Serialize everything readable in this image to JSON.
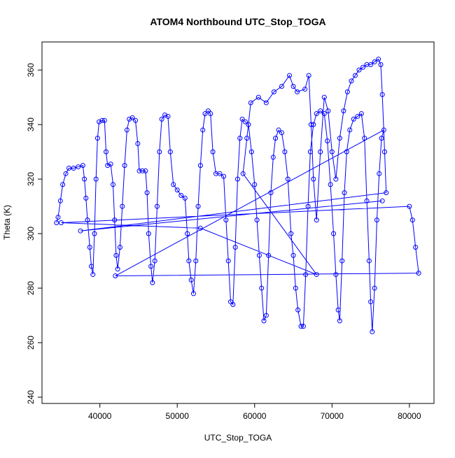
{
  "chart_data": {
    "type": "line",
    "title": "ATOM4 Northbound UTC_Stop_TOGA",
    "x_label": "UTC_Stop_TOGA",
    "y_label": "Theta (K)",
    "x": [
      34400,
      34600,
      34900,
      35200,
      35600,
      36000,
      36600,
      37200,
      37800,
      38000,
      38200,
      38400,
      38700,
      38900,
      39100,
      39300,
      39500,
      39700,
      39900,
      40300,
      40600,
      40800,
      41000,
      41400,
      41700,
      41900,
      42100,
      42300,
      42600,
      42900,
      43200,
      43500,
      43800,
      44200,
      44600,
      44900,
      45100,
      45500,
      45900,
      46100,
      46300,
      46600,
      46800,
      47100,
      47400,
      47700,
      48000,
      48400,
      48800,
      49100,
      49500,
      50000,
      50500,
      51000,
      51300,
      51500,
      51800,
      52100,
      52400,
      52700,
      53000,
      53300,
      53600,
      54000,
      54300,
      54600,
      55000,
      55500,
      56000,
      56300,
      56600,
      56900,
      57200,
      57500,
      57800,
      58100,
      58400,
      58800,
      59200,
      59600,
      60000,
      60300,
      60600,
      60900,
      61200,
      61500,
      61800,
      62100,
      62400,
      62700,
      63100,
      63500,
      63900,
      64300,
      64700,
      65000,
      65300,
      65600,
      66000,
      66300,
      66600,
      66900,
      67200,
      67600,
      68000,
      68500,
      69000,
      69400,
      69800,
      70200,
      70500,
      70800,
      71000,
      71300,
      71600,
      71900,
      72300,
      72800,
      73300,
      73800,
      74200,
      74500,
      74800,
      75000,
      75200,
      75500,
      75800,
      76100,
      76400,
      76700,
      42000,
      81200,
      80800,
      80400,
      80000,
      35000,
      53000,
      68000,
      58500,
      59000,
      59500,
      60500,
      61500,
      62500,
      63500,
      64500,
      65000,
      65500,
      66500,
      67000,
      67300,
      67600,
      68000,
      68500,
      69000,
      69500,
      70000,
      70500,
      71000,
      71500,
      72000,
      72500,
      73000,
      73500,
      74000,
      74500,
      75000,
      75500,
      76000,
      76300,
      76500,
      76800,
      77000,
      37500,
      76500
    ],
    "series": [
      {
        "name": "Theta",
        "color": "#0000ff",
        "values": [
          304,
          306,
          312,
          318,
          322,
          324,
          324,
          324.5,
          325,
          320,
          313,
          305,
          295,
          288,
          285,
          300,
          320,
          335,
          341,
          341.5,
          341.5,
          330,
          325,
          325.5,
          318,
          305,
          292,
          287,
          295,
          310,
          325,
          338,
          342,
          342.5,
          341.5,
          333,
          323,
          323,
          323,
          315,
          300,
          288,
          282,
          290,
          310,
          330,
          342,
          343.5,
          343,
          330,
          318,
          316,
          314,
          313,
          300,
          290,
          283,
          278,
          290,
          310,
          325,
          338,
          344,
          345,
          344,
          330,
          322,
          322,
          321,
          305,
          290,
          275,
          274,
          295,
          320,
          335,
          342,
          341,
          340,
          330,
          318,
          305,
          292,
          280,
          268,
          270,
          292,
          315,
          328,
          335,
          338,
          337,
          330,
          320,
          300,
          292,
          280,
          272,
          266,
          266,
          285,
          310,
          330,
          340,
          344,
          345,
          344,
          334,
          318,
          300,
          285,
          272,
          268,
          290,
          315,
          330,
          338,
          342,
          343,
          344,
          335,
          312,
          290,
          275,
          264,
          280,
          305,
          322,
          335,
          338,
          284.5,
          285.5,
          295,
          305,
          310,
          304,
          302,
          285,
          322,
          335,
          348,
          350,
          348,
          352,
          354,
          358,
          354,
          352,
          353,
          358,
          340,
          320,
          305,
          330,
          350,
          345,
          330,
          320,
          335,
          345,
          352,
          356,
          358,
          360,
          361,
          362,
          362,
          363,
          364,
          362,
          351,
          330,
          315,
          301,
          312
        ]
      }
    ],
    "xlim": [
      32520,
      83180
    ],
    "ylim": [
      237.7,
      370.3
    ],
    "xticks": [
      40000,
      50000,
      60000,
      70000,
      80000
    ],
    "yticks": [
      240,
      260,
      280,
      300,
      320,
      340,
      360
    ]
  }
}
